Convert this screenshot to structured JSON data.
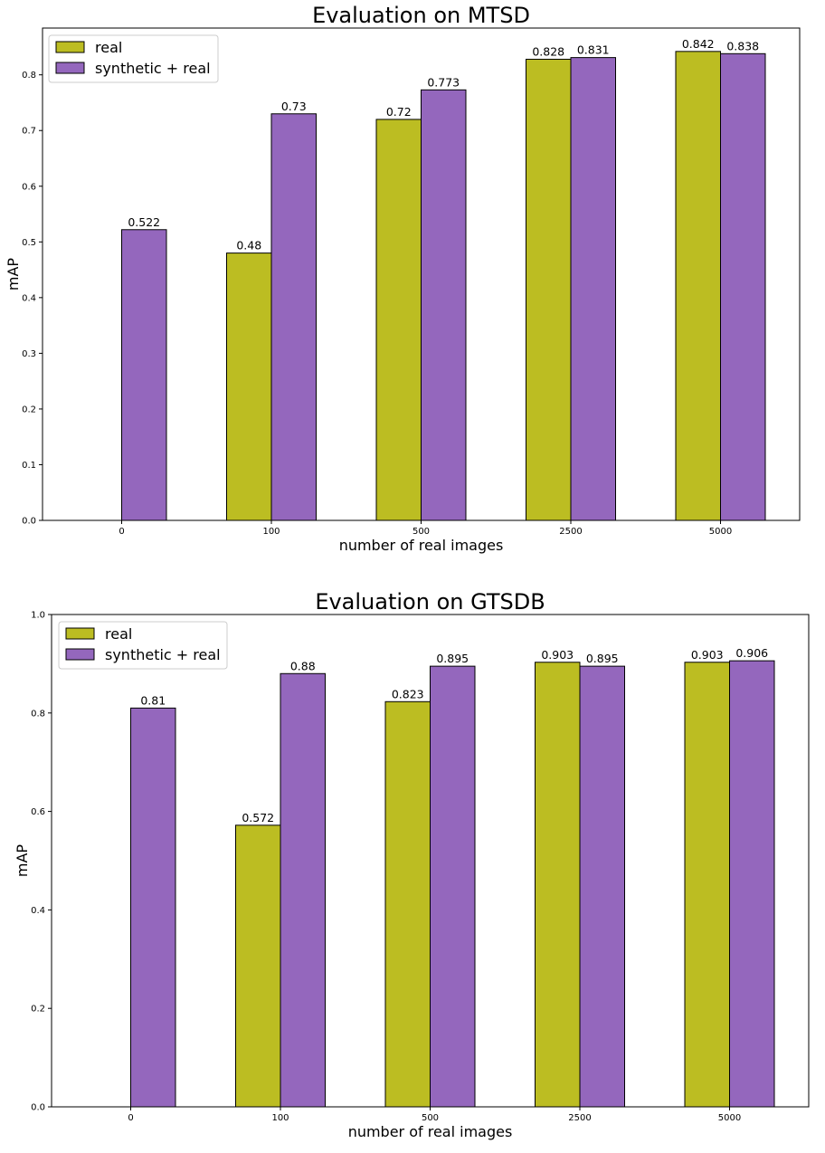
{
  "colors": {
    "real": "#bcbd22",
    "synthetic_real": "#9467bd",
    "edge": "#000000",
    "background": "#ffffff"
  },
  "chart_data": [
    {
      "type": "bar",
      "title": "Evaluation on MTSD",
      "xlabel": "number of real images",
      "ylabel": "mAP",
      "categories": [
        "0",
        "100",
        "500",
        "2500",
        "5000"
      ],
      "series": [
        {
          "name": "real",
          "values": [
            null,
            0.48,
            0.72,
            0.828,
            0.842
          ],
          "labels": [
            null,
            "0.48",
            "0.72",
            "0.828",
            "0.842"
          ]
        },
        {
          "name": "synthetic + real",
          "values": [
            0.522,
            0.73,
            0.773,
            0.831,
            0.838
          ],
          "labels": [
            "0.522",
            "0.73",
            "0.773",
            "0.831",
            "0.838"
          ]
        }
      ],
      "ylim": [
        0,
        0.884
      ],
      "yticks": [
        "0.0",
        "0.1",
        "0.2",
        "0.3",
        "0.4",
        "0.5",
        "0.6",
        "0.7",
        "0.8"
      ],
      "grid": false,
      "legend": "top-left"
    },
    {
      "type": "bar",
      "title": "Evaluation on GTSDB",
      "xlabel": "number of real images",
      "ylabel": "mAP",
      "categories": [
        "0",
        "100",
        "500",
        "2500",
        "5000"
      ],
      "series": [
        {
          "name": "real",
          "values": [
            null,
            0.572,
            0.823,
            0.903,
            0.903
          ],
          "labels": [
            null,
            "0.572",
            "0.823",
            "0.903",
            "0.903"
          ]
        },
        {
          "name": "synthetic + real",
          "values": [
            0.81,
            0.88,
            0.895,
            0.895,
            0.906
          ],
          "labels": [
            "0.81",
            "0.88",
            "0.895",
            "0.895",
            "0.906"
          ]
        }
      ],
      "ylim": [
        0,
        1.0
      ],
      "yticks": [
        "0.0",
        "0.2",
        "0.4",
        "0.6",
        "0.8",
        "1.0"
      ],
      "grid": false,
      "legend": "top-left"
    }
  ]
}
